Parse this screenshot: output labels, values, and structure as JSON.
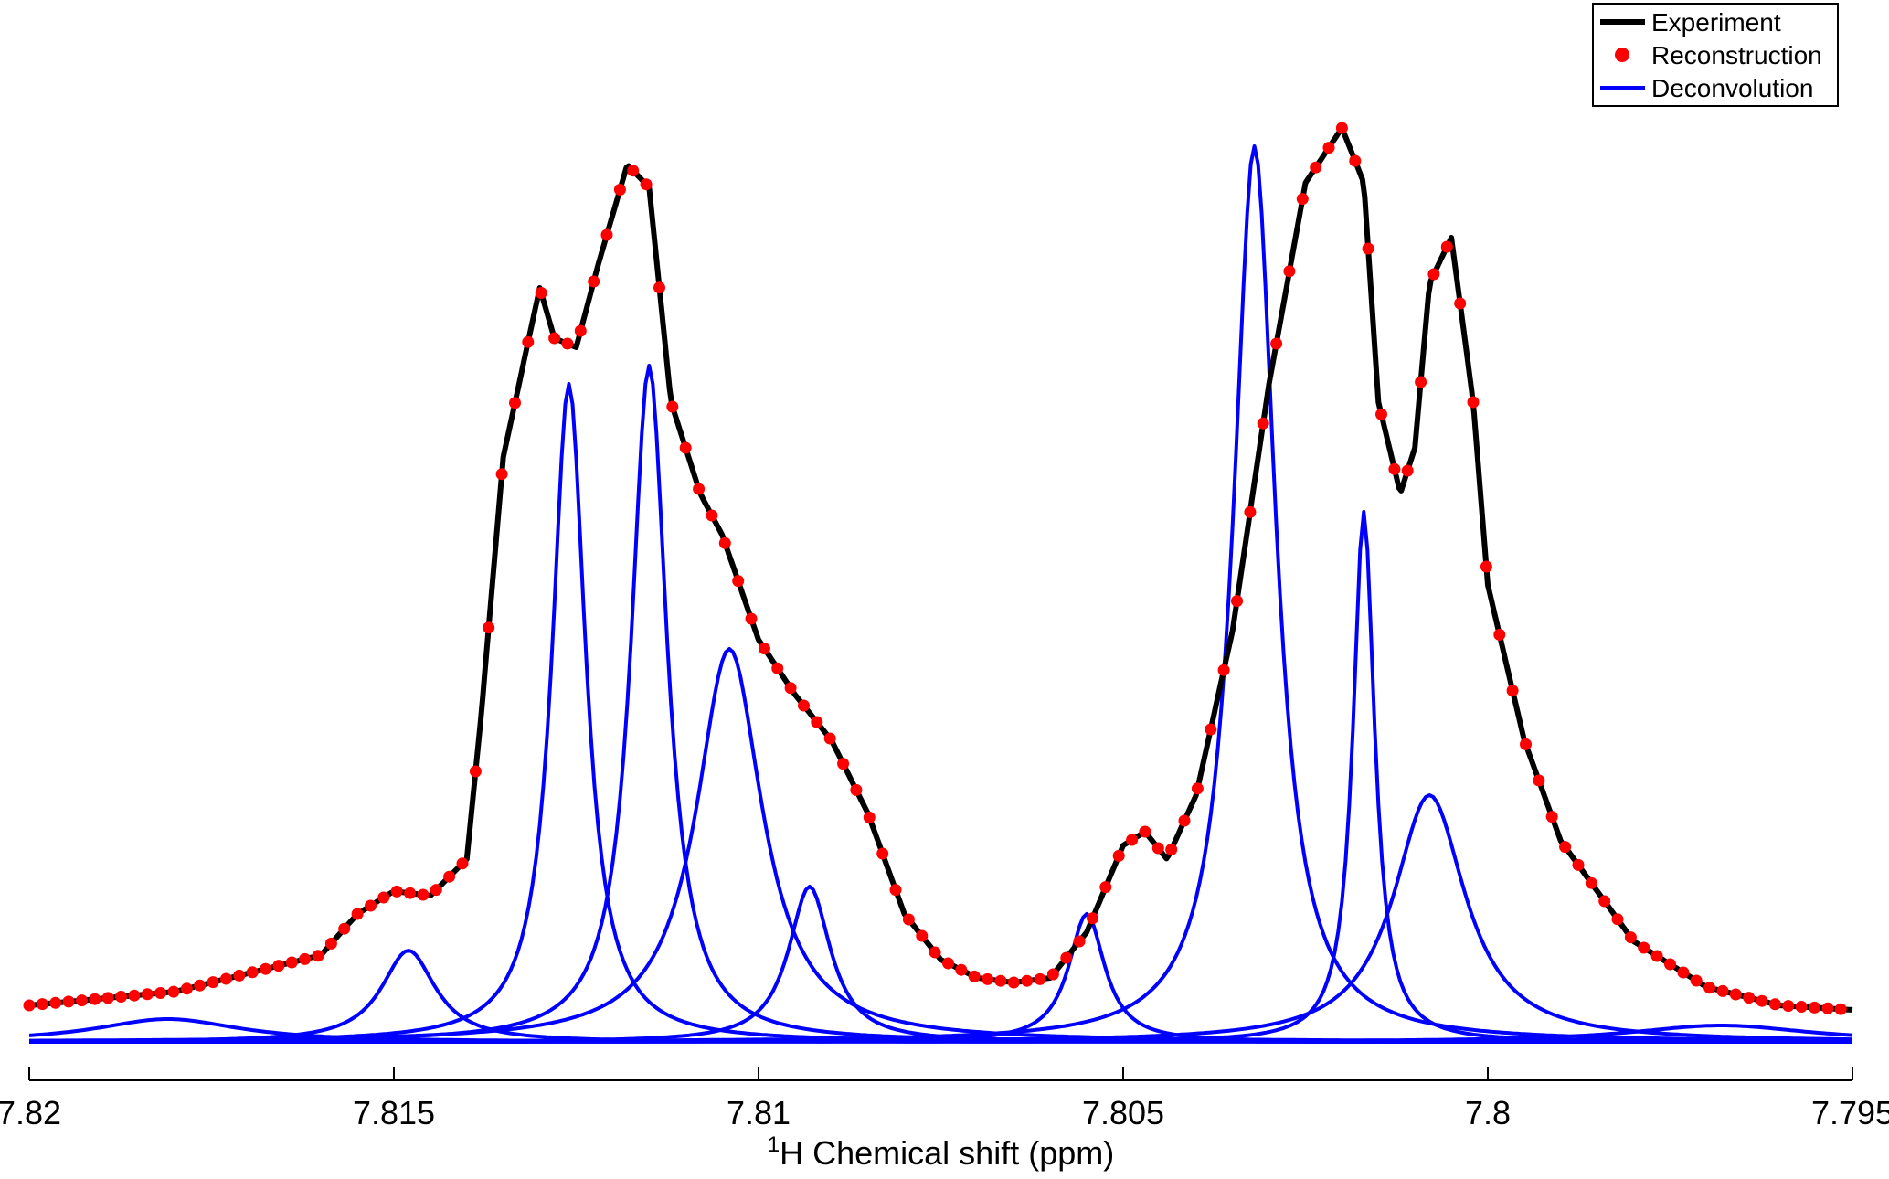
{
  "chart_data": {
    "type": "line",
    "title": "",
    "xlabel_prefix": "1",
    "xlabel": "H Chemical shift (ppm)",
    "ylabel": "",
    "xlim": [
      7.82,
      7.795
    ],
    "x_reversed": true,
    "ylim": [
      0,
      1.02
    ],
    "x_ticks": [
      {
        "value": 7.82,
        "label": "7.82"
      },
      {
        "value": 7.815,
        "label": "7.815"
      },
      {
        "value": 7.81,
        "label": "7.81"
      },
      {
        "value": 7.805,
        "label": "7.805"
      },
      {
        "value": 7.8,
        "label": "7.8"
      },
      {
        "value": 7.795,
        "label": "7.795"
      }
    ],
    "grid": false,
    "legend_position": "top-right",
    "legend": [
      {
        "label": "Experiment",
        "style": "line",
        "color": "#000000"
      },
      {
        "label": "Reconstruction",
        "style": "marker",
        "color": "#ff0000"
      },
      {
        "label": "Deconvolution",
        "style": "line",
        "color": "#0000ff"
      }
    ],
    "series": [
      {
        "name": "Experiment",
        "color": "#000000",
        "x": [
          7.82,
          7.818,
          7.816,
          7.8155,
          7.815,
          7.8145,
          7.814,
          7.8138,
          7.8135,
          7.813,
          7.8128,
          7.8125,
          7.8122,
          7.8118,
          7.8115,
          7.8112,
          7.8108,
          7.8105,
          7.81,
          7.8095,
          7.809,
          7.8085,
          7.808,
          7.8075,
          7.807,
          7.8065,
          7.806,
          7.8055,
          7.805,
          7.8047,
          7.8044,
          7.804,
          7.8035,
          7.803,
          7.8025,
          7.802,
          7.8017,
          7.8015,
          7.8012,
          7.801,
          7.8008,
          7.8005,
          7.8002,
          7.8,
          7.7995,
          7.799,
          7.798,
          7.797,
          7.796,
          7.795
        ],
        "y": [
          0.04,
          0.055,
          0.095,
          0.14,
          0.165,
          0.16,
          0.2,
          0.36,
          0.64,
          0.825,
          0.77,
          0.76,
          0.85,
          0.96,
          0.935,
          0.7,
          0.6,
          0.555,
          0.44,
          0.38,
          0.33,
          0.25,
          0.14,
          0.09,
          0.07,
          0.065,
          0.07,
          0.12,
          0.215,
          0.23,
          0.2,
          0.27,
          0.45,
          0.72,
          0.94,
          1.0,
          0.94,
          0.7,
          0.6,
          0.65,
          0.83,
          0.88,
          0.7,
          0.5,
          0.33,
          0.22,
          0.11,
          0.06,
          0.04,
          0.035
        ]
      },
      {
        "name": "Reconstruction",
        "color": "#ff0000",
        "source": "Experiment",
        "step_ppm": 0.00018
      },
      {
        "name": "Deconvolution",
        "color": "#0000ff",
        "peaks": [
          {
            "center": 7.8181,
            "height": 0.025,
            "width": 0.0012
          },
          {
            "center": 7.8148,
            "height": 0.1,
            "width": 0.00045
          },
          {
            "center": 7.8126,
            "height": 0.72,
            "width": 0.00028
          },
          {
            "center": 7.8115,
            "height": 0.74,
            "width": 0.0003
          },
          {
            "center": 7.8104,
            "height": 0.43,
            "width": 0.00055
          },
          {
            "center": 7.8093,
            "height": 0.17,
            "width": 0.00035
          },
          {
            "center": 7.8055,
            "height": 0.14,
            "width": 0.0003
          },
          {
            "center": 7.8032,
            "height": 0.98,
            "width": 0.00035
          },
          {
            "center": 7.8017,
            "height": 0.58,
            "width": 0.00018
          },
          {
            "center": 7.8008,
            "height": 0.27,
            "width": 0.0006
          },
          {
            "center": 7.7968,
            "height": 0.018,
            "width": 0.0015
          }
        ]
      }
    ]
  }
}
